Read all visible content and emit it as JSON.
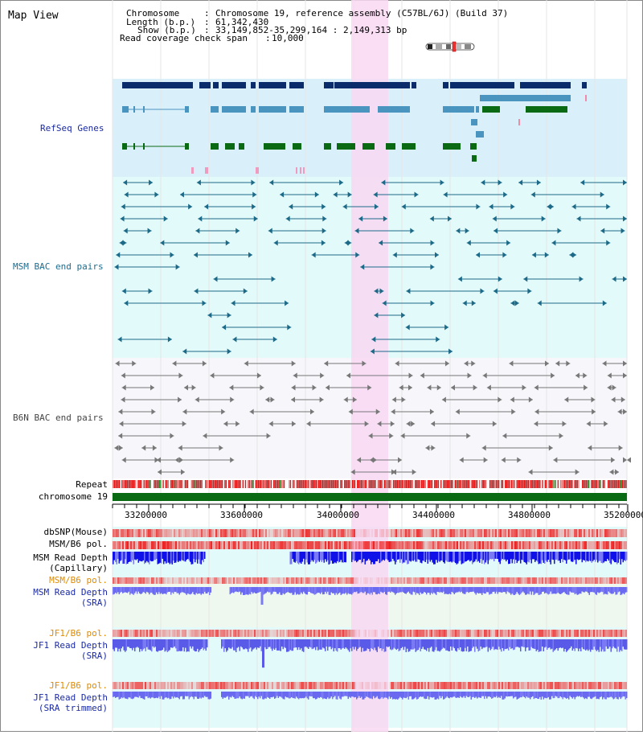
{
  "title": "Map View",
  "info": {
    "chromosome_label": "Chromosome",
    "chromosome_value": "Chromosome 19, reference assembly (C57BL/6J) (Build 37)",
    "length_label": "Length (b.p.)",
    "length_value": "61,342,430",
    "show_label": "Show (b.p.)",
    "show_value": "33,149,852-35,299,164 : 2,149,313 bp",
    "coverage_label": "Read coverage check span",
    "coverage_value": "10,000"
  },
  "tracks": {
    "refseq": "RefSeq Genes",
    "msm_bac": "MSM BAC end pairs",
    "b6n_bac": "B6N BAC end pairs",
    "repeat": "Repeat",
    "chromosome": "chromosome 19",
    "dbsnp": "dbSNP(Mouse)",
    "msm_b6_pol_1": "MSM/B6 pol.",
    "msm_read_depth_cap_1": "MSM Read Depth",
    "msm_read_depth_cap_2": "(Capillary)",
    "msm_b6_pol_2": "MSM/B6 pol.",
    "msm_read_depth_sra_1": "MSM Read Depth",
    "msm_read_depth_sra_2": "(SRA)",
    "jf1_b6_pol_1": "JF1/B6 pol.",
    "jf1_read_depth_sra_1": "JF1 Read Depth",
    "jf1_read_depth_sra_2": "(SRA)",
    "jf1_b6_pol_2": "JF1/B6 pol.",
    "jf1_read_depth_trim_1": "JF1 Read Depth",
    "jf1_read_depth_trim_2": "(SRA trimmed)"
  },
  "axis": {
    "ticks": [
      "33200000",
      "33600000",
      "34000000",
      "34400000",
      "34800000",
      "35200000"
    ]
  },
  "colors": {
    "refseq_bg": "#d9f0fb",
    "msm_bg": "#e3fafa",
    "b6n_bg": "#f6f6fb",
    "highlight": "#f8d8f2",
    "dark_blue": "#0b2c6b",
    "mid_blue": "#4a95c0",
    "gene_green": "#0a6a14",
    "msm_blue": "#1d6a88",
    "b6n_gray": "#777777",
    "label_blue": "#1a2aa8",
    "label_teal": "#1b6c8f",
    "label_orange": "#e08a00"
  }
}
